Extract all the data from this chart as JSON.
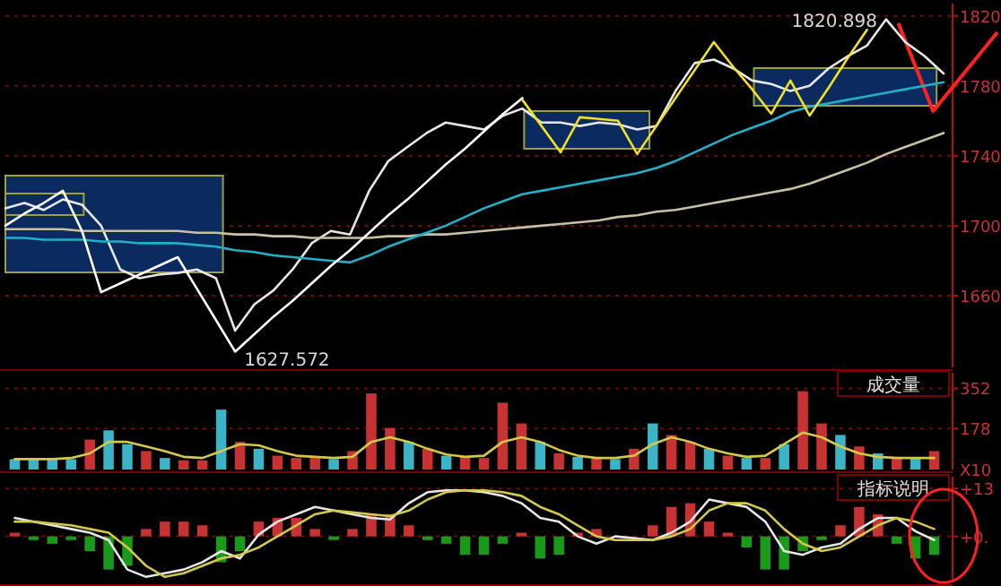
{
  "chart_data": [
    {
      "type": "line",
      "categories": [
        null,
        null,
        null,
        null,
        null,
        null,
        null,
        null,
        null,
        null,
        null,
        null,
        null,
        null,
        null,
        null,
        null,
        null,
        null,
        null,
        null,
        null,
        null,
        null,
        null,
        null,
        null,
        null,
        null,
        null,
        null,
        null,
        null,
        null,
        null,
        null,
        null,
        null,
        null,
        null,
        null,
        null,
        null,
        null,
        null,
        null,
        null,
        null,
        null,
        null
      ],
      "ylim": [
        1619,
        1827
      ],
      "yticks": [
        1660,
        1700,
        1740,
        1780,
        1820
      ],
      "grid": "y",
      "series": [
        {
          "color": "#e6e6e6",
          "values": [
            1710,
            1713,
            1709,
            1715,
            1712,
            1700,
            1675,
            1670,
            1672,
            1673,
            1675,
            1670,
            1640,
            1655,
            1663,
            1675,
            1690,
            1697,
            1695,
            1720,
            1737,
            1745,
            1753,
            1759,
            1757,
            1755,
            1763,
            1767,
            1759,
            1759,
            1757,
            1759,
            1758,
            1755,
            1757,
            1777,
            1793,
            1795,
            1790,
            1783,
            1781,
            1777,
            1780,
            1790,
            1797,
            1803,
            1818,
            1805,
            1797,
            1787
          ]
        },
        {
          "color": "#c8c0a0",
          "values": [
            1698,
            1698,
            1698,
            1698,
            1697,
            1697,
            1697,
            1697,
            1697,
            1697,
            1696,
            1696,
            1695,
            1695,
            1694,
            1694,
            1693,
            1693,
            1693,
            1693,
            1694,
            1694,
            1695,
            1695,
            1696,
            1697,
            1698,
            1699,
            1700,
            1701,
            1702,
            1703,
            1705,
            1706,
            1708,
            1709,
            1711,
            1713,
            1715,
            1717,
            1719,
            1721,
            1724,
            1728,
            1732,
            1736,
            1741,
            1745,
            1749,
            1753
          ]
        },
        {
          "color": "#20b0c8",
          "values": [
            1693,
            1693,
            1692,
            1692,
            1692,
            1691,
            1691,
            1690,
            1690,
            1690,
            1689,
            1688,
            1686,
            1685,
            1683,
            1682,
            1681,
            1680,
            1679,
            1683,
            1688,
            1692,
            1696,
            1700,
            1705,
            1710,
            1714,
            1718,
            1720,
            1722,
            1724,
            1726,
            1728,
            1730,
            1733,
            1737,
            1742,
            1747,
            1752,
            1756,
            1760,
            1765,
            1768,
            1770,
            1772,
            1774,
            1776,
            1778,
            1780,
            1782
          ]
        },
        {
          "color": "#ffffff",
          "values": [
            1700,
            1707,
            1713,
            1720,
            1697,
            1662,
            1667,
            1672,
            1677,
            1682,
            1664,
            1646,
            1628,
            1638,
            1648,
            1657,
            1667,
            1677,
            1686,
            1696,
            1706,
            1715,
            1725,
            1735,
            1744,
            1754,
            1764,
            1773,
            null,
            null,
            null,
            null,
            null,
            null,
            null,
            null,
            null,
            null,
            null,
            null,
            null,
            null,
            null,
            null,
            null,
            null,
            null,
            null,
            null,
            null
          ]
        },
        {
          "color": "#f0e020",
          "values": [
            null,
            null,
            null,
            null,
            null,
            null,
            null,
            null,
            null,
            null,
            null,
            null,
            null,
            null,
            null,
            null,
            null,
            null,
            null,
            null,
            null,
            null,
            null,
            null,
            null,
            null,
            null,
            1772,
            1757,
            1742,
            1762,
            1761,
            1760,
            1741,
            1757,
            1773,
            1789,
            1805,
            1791,
            1778,
            1764,
            1783,
            1763,
            1779,
            1796,
            1812,
            null,
            null,
            null,
            null
          ]
        }
      ],
      "annotations": [
        "1627.572",
        "1820.898"
      ]
    },
    {
      "type": "bar",
      "title": "成交量",
      "categories": [
        null,
        null,
        null,
        null,
        null,
        null,
        null,
        null,
        null,
        null,
        null,
        null,
        null,
        null,
        null,
        null,
        null,
        null,
        null,
        null,
        null,
        null,
        null,
        null,
        null,
        null,
        null,
        null,
        null,
        null,
        null,
        null,
        null,
        null,
        null,
        null,
        null,
        null,
        null,
        null,
        null,
        null,
        null,
        null,
        null,
        null,
        null,
        null,
        null,
        null
      ],
      "ylim": [
        0,
        420
      ],
      "yticks": [
        352,
        178
      ],
      "ylabel": "X10",
      "grid": "y",
      "series": [
        {
          "type": "bar",
          "colors": [
            "#3cb4c8",
            "#3cb4c8",
            "#3cb4c8",
            "#3cb4c8",
            "#c83232",
            "#3cb4c8",
            "#3cb4c8",
            "#c83232",
            "#3cb4c8",
            "#c83232",
            "#c83232",
            "#3cb4c8",
            "#c83232",
            "#3cb4c8",
            "#c83232",
            "#c83232",
            "#c83232",
            "#3cb4c8",
            "#c83232",
            "#c83232",
            "#c83232",
            "#3cb4c8",
            "#c83232",
            "#3cb4c8",
            "#c83232",
            "#c83232",
            "#c83232",
            "#c83232",
            "#3cb4c8",
            "#c83232",
            "#3cb4c8",
            "#c83232",
            "#3cb4c8",
            "#c83232",
            "#3cb4c8",
            "#c83232",
            "#c83232",
            "#3cb4c8",
            "#c83232",
            "#3cb4c8",
            "#c83232",
            "#3cb4c8",
            "#c83232",
            "#c83232",
            "#3cb4c8",
            "#c83232",
            "#3cb4c8",
            "#c83232",
            "#3cb4c8",
            "#c83232"
          ],
          "values": [
            45,
            45,
            45,
            45,
            130,
            170,
            110,
            80,
            50,
            40,
            40,
            260,
            120,
            90,
            60,
            50,
            50,
            45,
            80,
            330,
            180,
            120,
            90,
            60,
            55,
            50,
            290,
            200,
            120,
            70,
            55,
            50,
            45,
            90,
            200,
            150,
            120,
            90,
            60,
            50,
            50,
            110,
            340,
            200,
            150,
            100,
            70,
            55,
            50,
            80
          ]
        },
        {
          "type": "line",
          "color": "#d4c84a",
          "values": [
            45,
            45,
            45,
            50,
            70,
            120,
            120,
            100,
            80,
            55,
            50,
            80,
            110,
            105,
            80,
            60,
            55,
            50,
            55,
            120,
            140,
            120,
            90,
            65,
            55,
            60,
            120,
            140,
            120,
            85,
            60,
            50,
            50,
            60,
            110,
            140,
            120,
            90,
            70,
            55,
            60,
            110,
            160,
            140,
            100,
            70,
            55,
            50,
            50,
            50
          ]
        }
      ]
    },
    {
      "type": "bar",
      "title": "指标说明",
      "categories": [
        null,
        null,
        null,
        null,
        null,
        null,
        null,
        null,
        null,
        null,
        null,
        null,
        null,
        null,
        null,
        null,
        null,
        null,
        null,
        null,
        null,
        null,
        null,
        null,
        null,
        null,
        null,
        null,
        null,
        null,
        null,
        null,
        null,
        null,
        null,
        null,
        null,
        null,
        null,
        null,
        null,
        null,
        null,
        null,
        null,
        null,
        null,
        null,
        null,
        null
      ],
      "ylim": [
        -12.5,
        16.2
      ],
      "yticks": [
        {
          "value": 13,
          "label": "+13"
        },
        {
          "value": 0,
          "label": "+0."
        }
      ],
      "grid": "y",
      "series": [
        {
          "type": "bar",
          "color": "#c83232",
          "values": [
            1,
            null,
            null,
            null,
            null,
            null,
            null,
            2,
            4,
            4,
            3,
            null,
            null,
            4,
            5,
            5,
            2,
            null,
            2,
            6,
            6,
            3,
            null,
            null,
            null,
            null,
            null,
            1,
            null,
            null,
            1,
            2,
            null,
            null,
            3,
            8,
            9,
            4,
            1,
            null,
            null,
            null,
            null,
            null,
            3,
            8,
            6,
            null,
            null,
            null
          ]
        },
        {
          "type": "bar",
          "color": "#1a9a1a",
          "values": [
            null,
            -1,
            -2,
            -1,
            -4,
            -9,
            -8,
            null,
            null,
            null,
            null,
            -7,
            -4,
            null,
            null,
            null,
            null,
            -1,
            null,
            null,
            null,
            null,
            -1,
            -2,
            -5,
            -5,
            -2,
            null,
            -6,
            -5,
            null,
            null,
            null,
            null,
            null,
            null,
            null,
            null,
            null,
            -3,
            -9,
            -9,
            -4,
            -1,
            null,
            null,
            null,
            -2,
            -6,
            -5
          ]
        },
        {
          "type": "line",
          "color": "#e6e6e6",
          "values": [
            5,
            4,
            3,
            2,
            1,
            -1,
            -9,
            -11,
            -10,
            -9,
            -7,
            -4,
            -6,
            0.5,
            4,
            6,
            8,
            7,
            6,
            5,
            4.6,
            9,
            12,
            12.5,
            12.5,
            12,
            11,
            9,
            5,
            4,
            0,
            -2,
            0,
            -0.5,
            -1,
            1,
            4,
            10,
            9,
            8,
            4,
            -4,
            -5,
            -3,
            -2,
            2,
            5,
            5,
            1.4,
            -1
          ]
        },
        {
          "type": "line",
          "color": "#d4c84a",
          "values": [
            4,
            4,
            3.5,
            3,
            2,
            1,
            -3,
            -8,
            -11,
            -10,
            -8,
            -6,
            -5,
            -3,
            0,
            3,
            6,
            7,
            6.5,
            6,
            5.5,
            7,
            10,
            12,
            12.5,
            12.5,
            12,
            11,
            8,
            6,
            3,
            0,
            -1,
            -1,
            -1,
            0,
            2,
            7,
            9,
            9,
            7,
            2,
            -2,
            -4,
            -3,
            0,
            3,
            5,
            4,
            2
          ]
        }
      ]
    }
  ]
}
